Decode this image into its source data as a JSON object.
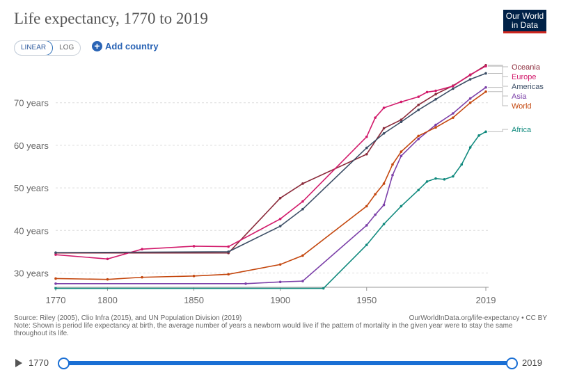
{
  "header": {
    "title": "Life expectancy, 1770 to 2019",
    "logo_line1": "Our World",
    "logo_line2": "in Data"
  },
  "controls": {
    "linear_label": "LINEAR",
    "log_label": "LOG",
    "add_country_label": "Add country"
  },
  "footer": {
    "source": "Source: Riley (2005), Clio Infra (2015), and UN Population Division (2019)",
    "url": "OurWorldInData.org/life-expectancy • CC BY",
    "note": "Note: Shown is period life expectancy at birth, the average number of years a newborn would live if the pattern of mortality in the given year were to stay the same throughout its life."
  },
  "timeline": {
    "start_label": "1770",
    "end_label": "2019",
    "start_value": 1770,
    "end_value": 2019
  },
  "colors": {
    "Oceania": "#8b2b3b",
    "Europe": "#d21a6b",
    "Americas": "#3c4e66",
    "Asia": "#7b3fa8",
    "World": "#c4470e",
    "Africa": "#118a7e"
  },
  "chart_data": {
    "type": "line",
    "title": "Life expectancy, 1770 to 2019",
    "xlabel": "",
    "ylabel": "",
    "xlim": [
      1770,
      2019
    ],
    "ylim": [
      25,
      80
    ],
    "x_ticks": [
      "1770",
      "1800",
      "1850",
      "1900",
      "1950",
      "2019"
    ],
    "y_ticks": [
      "30 years",
      "40 years",
      "50 years",
      "60 years",
      "70 years"
    ],
    "y_tick_values": [
      30,
      40,
      50,
      60,
      70
    ],
    "grid": true,
    "series": [
      {
        "name": "Oceania",
        "points": [
          [
            1770,
            34.7
          ],
          [
            1870,
            34.7
          ],
          [
            1900,
            47.6
          ],
          [
            1913,
            51.0
          ],
          [
            1950,
            57.9
          ],
          [
            1960,
            64.0
          ],
          [
            1970,
            66.0
          ],
          [
            1980,
            69.5
          ],
          [
            1990,
            72.0
          ],
          [
            2000,
            74.0
          ],
          [
            2010,
            76.5
          ],
          [
            2019,
            78.8
          ]
        ]
      },
      {
        "name": "Europe",
        "points": [
          [
            1770,
            34.3
          ],
          [
            1800,
            33.3
          ],
          [
            1820,
            35.6
          ],
          [
            1850,
            36.3
          ],
          [
            1870,
            36.2
          ],
          [
            1900,
            42.7
          ],
          [
            1913,
            46.8
          ],
          [
            1950,
            62.0
          ],
          [
            1955,
            66.5
          ],
          [
            1960,
            68.8
          ],
          [
            1970,
            70.2
          ],
          [
            1980,
            71.4
          ],
          [
            1985,
            72.5
          ],
          [
            1990,
            72.8
          ],
          [
            2000,
            73.9
          ],
          [
            2010,
            76.6
          ],
          [
            2019,
            78.6
          ]
        ]
      },
      {
        "name": "Americas",
        "points": [
          [
            1770,
            34.8
          ],
          [
            1870,
            35.0
          ],
          [
            1900,
            41.0
          ],
          [
            1913,
            45.0
          ],
          [
            1950,
            59.4
          ],
          [
            1960,
            62.8
          ],
          [
            1970,
            65.5
          ],
          [
            1980,
            68.3
          ],
          [
            1990,
            70.8
          ],
          [
            2000,
            73.3
          ],
          [
            2010,
            75.5
          ],
          [
            2019,
            76.9
          ]
        ]
      },
      {
        "name": "Asia",
        "points": [
          [
            1770,
            27.5
          ],
          [
            1880,
            27.5
          ],
          [
            1900,
            27.9
          ],
          [
            1913,
            28.1
          ],
          [
            1950,
            41.2
          ],
          [
            1955,
            43.7
          ],
          [
            1960,
            46.0
          ],
          [
            1965,
            53.0
          ],
          [
            1970,
            57.5
          ],
          [
            1980,
            61.5
          ],
          [
            1990,
            64.8
          ],
          [
            2000,
            67.5
          ],
          [
            2010,
            71.0
          ],
          [
            2019,
            73.6
          ]
        ]
      },
      {
        "name": "World",
        "points": [
          [
            1770,
            28.7
          ],
          [
            1800,
            28.5
          ],
          [
            1820,
            29.0
          ],
          [
            1850,
            29.3
          ],
          [
            1870,
            29.7
          ],
          [
            1900,
            32.0
          ],
          [
            1913,
            34.1
          ],
          [
            1950,
            45.7
          ],
          [
            1955,
            48.5
          ],
          [
            1960,
            51.0
          ],
          [
            1965,
            55.5
          ],
          [
            1970,
            58.5
          ],
          [
            1980,
            62.2
          ],
          [
            1990,
            64.2
          ],
          [
            2000,
            66.5
          ],
          [
            2010,
            70.0
          ],
          [
            2019,
            72.6
          ]
        ]
      },
      {
        "name": "Africa",
        "points": [
          [
            1770,
            26.4
          ],
          [
            1925,
            26.4
          ],
          [
            1950,
            36.6
          ],
          [
            1960,
            41.5
          ],
          [
            1970,
            45.7
          ],
          [
            1980,
            49.5
          ],
          [
            1985,
            51.5
          ],
          [
            1990,
            52.2
          ],
          [
            1995,
            52.0
          ],
          [
            2000,
            52.7
          ],
          [
            2005,
            55.5
          ],
          [
            2010,
            59.5
          ],
          [
            2015,
            62.3
          ],
          [
            2019,
            63.2
          ]
        ]
      }
    ]
  }
}
